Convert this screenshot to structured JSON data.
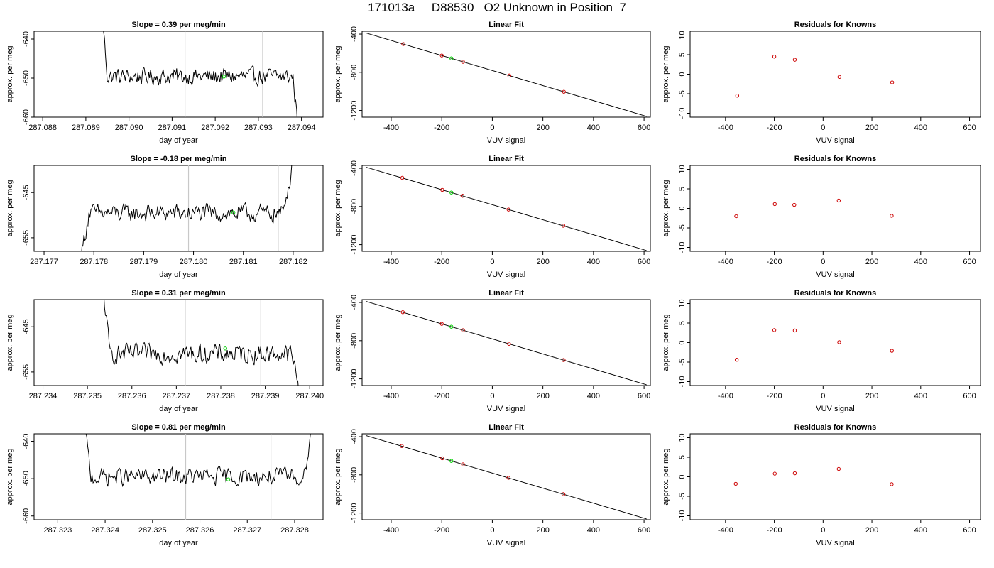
{
  "title": "171013a     D88530   O2 Unknown in Position  7",
  "colors": {
    "trace": "#000000",
    "marker_green": "#00cc00",
    "marker_red": "#cc0000",
    "vline": "#c8c8c8"
  },
  "chart_data": [
    {
      "type": "line",
      "title": "Slope =  0.39  per meg/min",
      "xlabel": "day of year",
      "ylabel": "approx. per meg",
      "xlim": [
        287.0878,
        287.0945
      ],
      "ylim": [
        -660,
        -638
      ],
      "xticks": [
        "287.088",
        "287.089",
        "287.090",
        "287.091",
        "287.092",
        "287.093",
        "287.094"
      ],
      "yticks": [
        "-640",
        "-650",
        "-660"
      ],
      "window": [
        287.08935,
        287.09395
      ],
      "steady_start": 287.0895,
      "steady_end": 287.0938,
      "level": -649.6,
      "noise": 1.6,
      "slope_per_day": 561.6,
      "vlines": [
        287.0913,
        287.0931
      ],
      "green_point": [
        287.0922,
        -649.6
      ]
    },
    {
      "type": "line",
      "title": "Slope =  -0.18  per meg/min",
      "xlabel": "day of year",
      "ylabel": "approx. per meg",
      "xlim": [
        287.1768,
        287.1826
      ],
      "ylim": [
        -658,
        -639
      ],
      "xticks": [
        "287.177",
        "287.178",
        "287.179",
        "287.180",
        "287.181",
        "287.182"
      ],
      "yticks": [
        "-645",
        "-655"
      ],
      "window": [
        287.1777,
        287.1821
      ],
      "steady_start": 287.1779,
      "steady_end": 287.1818,
      "level": -649.6,
      "noise": 1.5,
      "slope_per_day": -259.2,
      "vlines": [
        287.1799,
        287.1817
      ],
      "green_point": [
        287.1808,
        -649.4
      ]
    },
    {
      "type": "line",
      "title": "Slope =  0.31  per meg/min",
      "xlabel": "day of year",
      "ylabel": "approx. per meg",
      "xlim": [
        287.2338,
        287.2403
      ],
      "ylim": [
        -658,
        -639
      ],
      "xticks": [
        "287.234",
        "287.235",
        "287.236",
        "287.237",
        "287.238",
        "287.239",
        "287.240"
      ],
      "yticks": [
        "-645",
        "-655"
      ],
      "window": [
        287.2353,
        287.2399
      ],
      "steady_start": 287.2355,
      "steady_end": 287.2396,
      "level": -651.0,
      "noise": 1.6,
      "slope_per_day": 446.4,
      "vlines": [
        287.2372,
        287.2389
      ],
      "green_point": [
        287.2381,
        -649.8
      ]
    },
    {
      "type": "line",
      "title": "Slope =  0.81  per meg/min",
      "xlabel": "day of year",
      "ylabel": "approx. per meg",
      "xlim": [
        287.3225,
        287.3286
      ],
      "ylim": [
        -661,
        -638
      ],
      "xticks": [
        "287.323",
        "287.324",
        "287.325",
        "287.326",
        "287.327",
        "287.328"
      ],
      "yticks": [
        "-640",
        "-650",
        "-660"
      ],
      "window": [
        287.3235,
        287.3284
      ],
      "steady_start": 287.3237,
      "steady_end": 287.3282,
      "level": -649.5,
      "noise": 1.8,
      "slope_per_day": 1166.4,
      "vlines": [
        287.3257,
        287.3275
      ],
      "green_point": [
        287.3266,
        -650.2
      ]
    },
    {
      "type": "scatter",
      "title": "Linear Fit",
      "xlabel": "VUV signal",
      "ylabel": "approx. per meg",
      "xlim": [
        -515,
        625
      ],
      "ylim": [
        -1270,
        -370
      ],
      "xticks": [
        "-400",
        "-200",
        "0",
        "200",
        "400",
        "600"
      ],
      "yticks": [
        "-400",
        "-800",
        "-1200"
      ],
      "fit_line": [
        [
          -500,
          -388
        ],
        [
          610,
          -1262
        ]
      ],
      "points": [
        [
          -352,
          -504
        ],
        [
          -200,
          -624
        ],
        [
          -116,
          -690
        ],
        [
          67,
          -834
        ],
        [
          283,
          -1004
        ]
      ],
      "green_point": [
        -162,
        -654
      ]
    },
    {
      "type": "scatter",
      "title": "Linear Fit",
      "xlabel": "VUV signal",
      "ylabel": "approx. per meg",
      "xlim": [
        -515,
        625
      ],
      "ylim": [
        -1270,
        -370
      ],
      "xticks": [
        "-400",
        "-200",
        "0",
        "200",
        "400",
        "600"
      ],
      "yticks": [
        "-400",
        "-800",
        "-1200"
      ],
      "fit_line": [
        [
          -500,
          -388
        ],
        [
          610,
          -1262
        ]
      ],
      "points": [
        [
          -356,
          -500
        ],
        [
          -198,
          -626
        ],
        [
          -118,
          -688
        ],
        [
          64,
          -832
        ],
        [
          281,
          -1002
        ]
      ],
      "green_point": [
        -162,
        -654
      ]
    },
    {
      "type": "scatter",
      "title": "Linear Fit",
      "xlabel": "VUV signal",
      "ylabel": "approx. per meg",
      "xlim": [
        -515,
        625
      ],
      "ylim": [
        -1270,
        -370
      ],
      "xticks": [
        "-400",
        "-200",
        "0",
        "200",
        "400",
        "600"
      ],
      "yticks": [
        "-400",
        "-800",
        "-1200"
      ],
      "fit_line": [
        [
          -500,
          -388
        ],
        [
          610,
          -1262
        ]
      ],
      "points": [
        [
          -354,
          -502
        ],
        [
          -200,
          -624
        ],
        [
          -116,
          -690
        ],
        [
          66,
          -833
        ],
        [
          282,
          -1003
        ]
      ],
      "green_point": [
        -162,
        -654
      ]
    },
    {
      "type": "scatter",
      "title": "Linear Fit",
      "xlabel": "VUV signal",
      "ylabel": "approx. per meg",
      "xlim": [
        -515,
        625
      ],
      "ylim": [
        -1270,
        -370
      ],
      "xticks": [
        "-400",
        "-200",
        "0",
        "200",
        "400",
        "600"
      ],
      "yticks": [
        "-400",
        "-800",
        "-1200"
      ],
      "fit_line": [
        [
          -500,
          -388
        ],
        [
          610,
          -1262
        ]
      ],
      "points": [
        [
          -358,
          -498
        ],
        [
          -198,
          -626
        ],
        [
          -116,
          -690
        ],
        [
          64,
          -831
        ],
        [
          281,
          -1002
        ]
      ],
      "green_point": [
        -162,
        -654
      ]
    },
    {
      "type": "scatter",
      "title": "Residuals for Knowns",
      "xlabel": "VUV signal",
      "ylabel": "approx. per meg",
      "xlim": [
        -545,
        645
      ],
      "ylim": [
        -11,
        11
      ],
      "xticks": [
        "-400",
        "-200",
        "0",
        "200",
        "400",
        "600"
      ],
      "yticks": [
        "10",
        "5",
        "0",
        "-5",
        "-10"
      ],
      "points": [
        [
          -352,
          -5.5
        ],
        [
          -200,
          4.5
        ],
        [
          -116,
          3.7
        ],
        [
          67,
          -0.7
        ],
        [
          283,
          -2.1
        ]
      ]
    },
    {
      "type": "scatter",
      "title": "Residuals for Knowns",
      "xlabel": "VUV signal",
      "ylabel": "approx. per meg",
      "xlim": [
        -545,
        645
      ],
      "ylim": [
        -11,
        11
      ],
      "xticks": [
        "-400",
        "-200",
        "0",
        "200",
        "400",
        "600"
      ],
      "yticks": [
        "10",
        "5",
        "0",
        "-5",
        "-10"
      ],
      "points": [
        [
          -356,
          -2.0
        ],
        [
          -198,
          1.1
        ],
        [
          -118,
          0.9
        ],
        [
          64,
          2.0
        ],
        [
          281,
          -1.9
        ]
      ]
    },
    {
      "type": "scatter",
      "title": "Residuals for Knowns",
      "xlabel": "VUV signal",
      "ylabel": "approx. per meg",
      "xlim": [
        -545,
        645
      ],
      "ylim": [
        -11,
        11
      ],
      "xticks": [
        "-400",
        "-200",
        "0",
        "200",
        "400",
        "600"
      ],
      "yticks": [
        "10",
        "5",
        "0",
        "-5",
        "-10"
      ],
      "points": [
        [
          -354,
          -4.4
        ],
        [
          -200,
          3.2
        ],
        [
          -116,
          3.1
        ],
        [
          66,
          0.1
        ],
        [
          282,
          -2.1
        ]
      ]
    },
    {
      "type": "scatter",
      "title": "Residuals for Knowns",
      "xlabel": "VUV signal",
      "ylabel": "approx. per meg",
      "xlim": [
        -545,
        645
      ],
      "ylim": [
        -11,
        11
      ],
      "xticks": [
        "-400",
        "-200",
        "0",
        "200",
        "400",
        "600"
      ],
      "yticks": [
        "10",
        "5",
        "0",
        "-5",
        "-10"
      ],
      "points": [
        [
          -358,
          -1.8
        ],
        [
          -198,
          0.8
        ],
        [
          -116,
          0.9
        ],
        [
          64,
          2.0
        ],
        [
          281,
          -1.9
        ]
      ]
    }
  ]
}
